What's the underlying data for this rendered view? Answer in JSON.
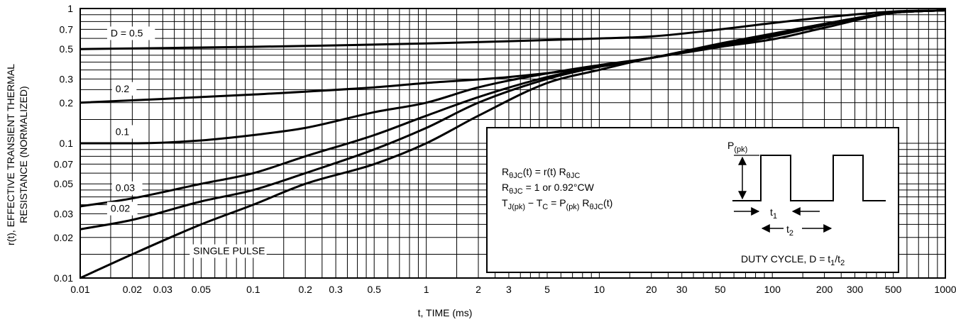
{
  "chart_data": {
    "type": "line",
    "title": "",
    "xlabel": "t, TIME (ms)",
    "ylabel_line1": "r(t), EFFECTIVE TRANSIENT THERMAL",
    "ylabel_line2": "RESISTANCE (NORMALIZED)",
    "x_scale": "log",
    "y_scale": "log",
    "xlim": [
      0.01,
      1000
    ],
    "ylim": [
      0.01,
      1
    ],
    "grid": true,
    "x_tick_labels": [
      {
        "v": 0.01,
        "t": "0.01"
      },
      {
        "v": 0.02,
        "t": "0.02"
      },
      {
        "v": 0.03,
        "t": "0.03"
      },
      {
        "v": 0.05,
        "t": "0.05"
      },
      {
        "v": 0.1,
        "t": "0.1"
      },
      {
        "v": 0.2,
        "t": "0.2"
      },
      {
        "v": 0.3,
        "t": "0.3"
      },
      {
        "v": 0.5,
        "t": "0.5"
      },
      {
        "v": 1,
        "t": "1"
      },
      {
        "v": 2,
        "t": "2"
      },
      {
        "v": 3,
        "t": "3"
      },
      {
        "v": 5,
        "t": "5"
      },
      {
        "v": 10,
        "t": "10"
      },
      {
        "v": 20,
        "t": "20"
      },
      {
        "v": 30,
        "t": "30"
      },
      {
        "v": 50,
        "t": "50"
      },
      {
        "v": 100,
        "t": "100"
      },
      {
        "v": 200,
        "t": "200"
      },
      {
        "v": 300,
        "t": "300"
      },
      {
        "v": 500,
        "t": "500"
      },
      {
        "v": 1000,
        "t": "1000"
      }
    ],
    "y_tick_labels": [
      {
        "v": 0.01,
        "t": "0.01"
      },
      {
        "v": 0.02,
        "t": "0.02"
      },
      {
        "v": 0.03,
        "t": "0.03"
      },
      {
        "v": 0.05,
        "t": "0.05"
      },
      {
        "v": 0.07,
        "t": "0.07"
      },
      {
        "v": 0.1,
        "t": "0.1"
      },
      {
        "v": 0.2,
        "t": "0.2"
      },
      {
        "v": 0.3,
        "t": "0.3"
      },
      {
        "v": 0.5,
        "t": "0.5"
      },
      {
        "v": 0.7,
        "t": "0.7"
      },
      {
        "v": 1,
        "t": "1"
      }
    ],
    "series": [
      {
        "label": "D = 0.5",
        "label_at": [
          0.015,
          0.62
        ],
        "points": [
          [
            0.01,
            0.5
          ],
          [
            0.1,
            0.52
          ],
          [
            1,
            0.55
          ],
          [
            10,
            0.6
          ],
          [
            20,
            0.62
          ],
          [
            50,
            0.7
          ],
          [
            100,
            0.78
          ],
          [
            200,
            0.86
          ],
          [
            500,
            0.95
          ],
          [
            1000,
            0.97
          ]
        ]
      },
      {
        "label": "0.2",
        "label_at": [
          0.016,
          0.24
        ],
        "points": [
          [
            0.01,
            0.2
          ],
          [
            0.1,
            0.23
          ],
          [
            0.5,
            0.26
          ],
          [
            1,
            0.28
          ],
          [
            3,
            0.31
          ],
          [
            10,
            0.37
          ],
          [
            20,
            0.43
          ],
          [
            50,
            0.55
          ],
          [
            100,
            0.65
          ],
          [
            200,
            0.77
          ],
          [
            500,
            0.93
          ],
          [
            1000,
            0.97
          ]
        ]
      },
      {
        "label": "0.1",
        "label_at": [
          0.016,
          0.115
        ],
        "points": [
          [
            0.01,
            0.1
          ],
          [
            0.02,
            0.1
          ],
          [
            0.05,
            0.105
          ],
          [
            0.1,
            0.115
          ],
          [
            0.2,
            0.13
          ],
          [
            0.5,
            0.17
          ],
          [
            1,
            0.2
          ],
          [
            2,
            0.26
          ],
          [
            5,
            0.33
          ],
          [
            10,
            0.38
          ],
          [
            20,
            0.43
          ],
          [
            50,
            0.54
          ],
          [
            100,
            0.64
          ],
          [
            200,
            0.77
          ],
          [
            500,
            0.93
          ],
          [
            1000,
            0.97
          ]
        ]
      },
      {
        "label": "0.03",
        "label_at": [
          0.016,
          0.044
        ],
        "points": [
          [
            0.01,
            0.034
          ],
          [
            0.02,
            0.039
          ],
          [
            0.05,
            0.05
          ],
          [
            0.1,
            0.06
          ],
          [
            0.2,
            0.08
          ],
          [
            0.5,
            0.115
          ],
          [
            1,
            0.16
          ],
          [
            2,
            0.22
          ],
          [
            5,
            0.31
          ],
          [
            10,
            0.37
          ],
          [
            20,
            0.43
          ],
          [
            50,
            0.53
          ],
          [
            100,
            0.63
          ],
          [
            200,
            0.76
          ],
          [
            500,
            0.93
          ],
          [
            1000,
            0.97
          ]
        ]
      },
      {
        "label": "0.02",
        "label_at": [
          0.015,
          0.031
        ],
        "points": [
          [
            0.01,
            0.023
          ],
          [
            0.02,
            0.027
          ],
          [
            0.05,
            0.037
          ],
          [
            0.1,
            0.045
          ],
          [
            0.2,
            0.06
          ],
          [
            0.5,
            0.09
          ],
          [
            1,
            0.13
          ],
          [
            2,
            0.2
          ],
          [
            5,
            0.3
          ],
          [
            10,
            0.37
          ],
          [
            20,
            0.43
          ],
          [
            50,
            0.52
          ],
          [
            100,
            0.62
          ],
          [
            200,
            0.75
          ],
          [
            500,
            0.93
          ],
          [
            1000,
            0.97
          ]
        ]
      },
      {
        "label": "SINGLE PULSE",
        "label_at": [
          0.045,
          0.015
        ],
        "points": [
          [
            0.01,
            0.01
          ],
          [
            0.02,
            0.015
          ],
          [
            0.05,
            0.025
          ],
          [
            0.1,
            0.035
          ],
          [
            0.2,
            0.05
          ],
          [
            0.5,
            0.07
          ],
          [
            1,
            0.1
          ],
          [
            2,
            0.16
          ],
          [
            5,
            0.28
          ],
          [
            10,
            0.35
          ],
          [
            20,
            0.43
          ],
          [
            50,
            0.52
          ],
          [
            100,
            0.59
          ],
          [
            200,
            0.72
          ],
          [
            500,
            0.93
          ],
          [
            1000,
            0.97
          ]
        ]
      }
    ],
    "inset": {
      "formula1": {
        "pre": "R",
        "sub1": "θJC",
        "mid": "(t) = r(t) R",
        "sub2": "θJC"
      },
      "formula2": {
        "pre": "R",
        "sub1": "θJC",
        "rest": " = 1 or 0.92°CW"
      },
      "formula3": {
        "pre": "T",
        "sub1": "J(pk)",
        "mid": " − T",
        "sub2": "C",
        "mid2": " = P",
        "sub3": "(pk)",
        "mid3": " R",
        "sub4": "θJC",
        "post": "(t)"
      },
      "pk_label": {
        "pre": "P",
        "sub": "(pk)"
      },
      "t1_label": {
        "pre": "t",
        "sub": "1"
      },
      "t2_label": {
        "pre": "t",
        "sub": "2"
      },
      "duty": {
        "pre": "DUTY CYCLE, D = t",
        "sub1": "1",
        "mid": "/t",
        "sub2": "2"
      }
    }
  }
}
